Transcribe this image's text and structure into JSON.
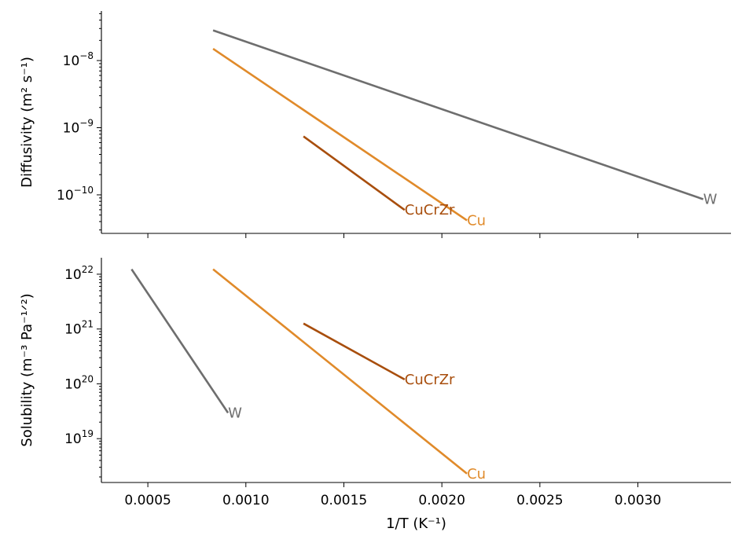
{
  "chart_data": [
    {
      "type": "line",
      "id": "diffusivity",
      "ylabel": "Diffusivity (m² s⁻¹)",
      "yscale": "log",
      "xlim": [
        0.000263,
        0.003475
      ],
      "ylim_log10": [
        -10.574,
        -7.262
      ],
      "yticks": [
        {
          "exp": -8,
          "label": "10",
          "sup": "−8"
        },
        {
          "exp": -9,
          "label": "10",
          "sup": "−9"
        },
        {
          "exp": -10,
          "label": "10",
          "sup": "−10"
        }
      ],
      "series": [
        {
          "name": "W",
          "color": "#6e6e6e",
          "x": [
            0.000833,
            0.003333
          ],
          "y_log10": [
            -7.55,
            -10.065
          ]
        },
        {
          "name": "Cu",
          "color": "#e08a2a",
          "x": [
            0.000833,
            0.002128
          ],
          "y_log10": [
            -7.825,
            -10.38
          ]
        },
        {
          "name": "CuCrZr",
          "color": "#a84e0d",
          "x": [
            0.001294,
            0.00181
          ],
          "y_log10": [
            -9.13,
            -10.225
          ]
        }
      ]
    },
    {
      "type": "line",
      "id": "solubility",
      "xlabel": "1/T (K⁻¹)",
      "ylabel": "Solubility (m⁻³ Pa⁻¹ᐟ²)",
      "yscale": "log",
      "xlim": [
        0.000263,
        0.003475
      ],
      "ylim_log10": [
        18.2,
        22.3
      ],
      "yticks": [
        {
          "exp": 22,
          "label": "10",
          "sup": "22"
        },
        {
          "exp": 21,
          "label": "10",
          "sup": "21"
        },
        {
          "exp": 20,
          "label": "10",
          "sup": "20"
        },
        {
          "exp": 19,
          "label": "10",
          "sup": "19"
        }
      ],
      "xticks": [
        {
          "value": 0.0005,
          "label": "0.0005"
        },
        {
          "value": 0.001,
          "label": "0.0010"
        },
        {
          "value": 0.0015,
          "label": "0.0015"
        },
        {
          "value": 0.002,
          "label": "0.0020"
        },
        {
          "value": 0.0025,
          "label": "0.0025"
        },
        {
          "value": 0.003,
          "label": "0.0030"
        }
      ],
      "series": [
        {
          "name": "W",
          "color": "#6e6e6e",
          "x": [
            0.000417,
            0.000909
          ],
          "y_log10": [
            22.09,
            19.47
          ]
        },
        {
          "name": "Cu",
          "color": "#e08a2a",
          "x": [
            0.000833,
            0.002128
          ],
          "y_log10": [
            22.09,
            18.36
          ]
        },
        {
          "name": "CuCrZr",
          "color": "#a84e0d",
          "x": [
            0.001294,
            0.00181
          ],
          "y_log10": [
            21.1,
            20.08
          ]
        }
      ]
    }
  ]
}
